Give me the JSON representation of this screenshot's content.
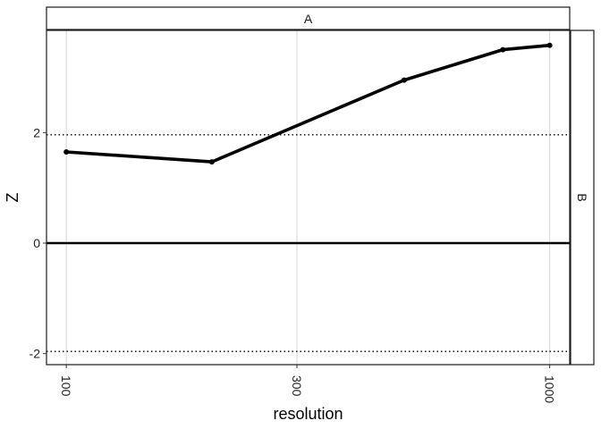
{
  "chart_data": {
    "type": "line",
    "facet_top": "A",
    "facet_right": "B",
    "xlabel": "resolution",
    "ylabel": "Z",
    "x_scale": "log10",
    "xlim": [
      91,
      1100
    ],
    "ylim": [
      -2.2,
      3.85
    ],
    "x_ticks": [
      100,
      300,
      1000
    ],
    "x_tick_labels": [
      "100",
      "300",
      "1000"
    ],
    "y_ticks": [
      -2,
      0,
      2
    ],
    "y_tick_labels": [
      "-2",
      "0",
      "2"
    ],
    "reference_lines": {
      "solid": [
        0
      ],
      "dotted": [
        1.96,
        -1.96
      ]
    },
    "grid": "vertical major lines",
    "series": [
      {
        "x": [
          100,
          200,
          500,
          800,
          1000
        ],
        "y": [
          1.65,
          1.47,
          2.95,
          3.5,
          3.58
        ]
      }
    ]
  }
}
